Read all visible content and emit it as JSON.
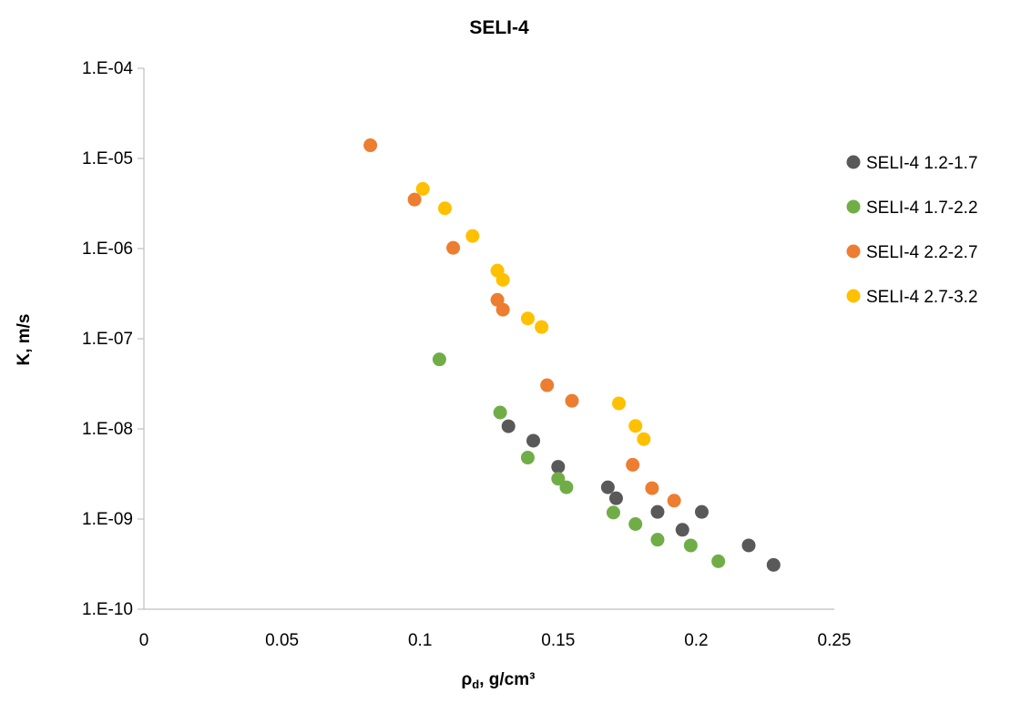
{
  "chart_data": {
    "type": "scatter",
    "title": "SELI-4",
    "xlabel_main": "ρ",
    "xlabel_sub": "d",
    "xlabel_rest": ", g/cm³",
    "ylabel": "K, m/s",
    "xlim": [
      0,
      0.25
    ],
    "ylim": [
      1e-10,
      0.0001
    ],
    "y_scale": "log",
    "grid": false,
    "legend_position": "right",
    "x_ticks": [
      {
        "value": 0,
        "label": "0"
      },
      {
        "value": 0.05,
        "label": "0.05"
      },
      {
        "value": 0.1,
        "label": "0.1"
      },
      {
        "value": 0.15,
        "label": "0.15"
      },
      {
        "value": 0.2,
        "label": "0.2"
      },
      {
        "value": 0.25,
        "label": "0.25"
      }
    ],
    "y_ticks": [
      {
        "value": 1e-10,
        "label": "1.E-10"
      },
      {
        "value": 1e-09,
        "label": "1.E-09"
      },
      {
        "value": 1e-08,
        "label": "1.E-08"
      },
      {
        "value": 1e-07,
        "label": "1.E-07"
      },
      {
        "value": 1e-06,
        "label": "1.E-06"
      },
      {
        "value": 1e-05,
        "label": "1.E-05"
      },
      {
        "value": 0.0001,
        "label": "1.E-04"
      }
    ],
    "series": [
      {
        "name": "SELI-4 1.2-1.7",
        "color": "#595959",
        "points": [
          [
            0.132,
            1.07e-08
          ],
          [
            0.141,
            7.4e-09
          ],
          [
            0.15,
            3.8e-09
          ],
          [
            0.168,
            2.25e-09
          ],
          [
            0.171,
            1.7e-09
          ],
          [
            0.186,
            1.2e-09
          ],
          [
            0.195,
            7.6e-10
          ],
          [
            0.202,
            1.2e-09
          ],
          [
            0.219,
            5.1e-10
          ],
          [
            0.228,
            3.1e-10
          ]
        ]
      },
      {
        "name": "SELI-4 1.7-2.2",
        "color": "#70AD47",
        "points": [
          [
            0.107,
            5.9e-08
          ],
          [
            0.129,
            1.52e-08
          ],
          [
            0.139,
            4.8e-09
          ],
          [
            0.15,
            2.8e-09
          ],
          [
            0.153,
            2.25e-09
          ],
          [
            0.17,
            1.18e-09
          ],
          [
            0.178,
            8.8e-10
          ],
          [
            0.186,
            5.9e-10
          ],
          [
            0.198,
            5.1e-10
          ],
          [
            0.208,
            3.4e-10
          ]
        ]
      },
      {
        "name": "SELI-4 2.2-2.7",
        "color": "#ED7D31",
        "points": [
          [
            0.082,
            1.4e-05
          ],
          [
            0.098,
            3.5e-06
          ],
          [
            0.112,
            1.02e-06
          ],
          [
            0.128,
            2.7e-07
          ],
          [
            0.13,
            2.1e-07
          ],
          [
            0.146,
            3.05e-08
          ],
          [
            0.155,
            2.05e-08
          ],
          [
            0.177,
            4e-09
          ],
          [
            0.184,
            2.2e-09
          ],
          [
            0.192,
            1.6e-09
          ]
        ]
      },
      {
        "name": "SELI-4 2.7-3.2",
        "color": "#FFC000",
        "points": [
          [
            0.101,
            4.6e-06
          ],
          [
            0.109,
            2.8e-06
          ],
          [
            0.119,
            1.38e-06
          ],
          [
            0.128,
            5.7e-07
          ],
          [
            0.13,
            4.5e-07
          ],
          [
            0.139,
            1.68e-07
          ],
          [
            0.144,
            1.35e-07
          ],
          [
            0.172,
            1.92e-08
          ],
          [
            0.178,
            1.08e-08
          ],
          [
            0.181,
            7.7e-09
          ]
        ]
      }
    ]
  }
}
